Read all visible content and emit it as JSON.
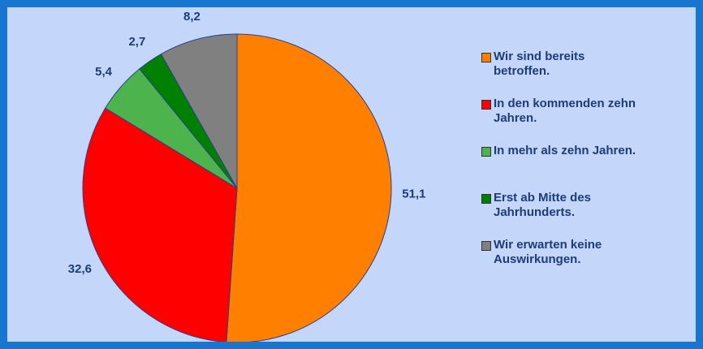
{
  "chart_data": {
    "type": "pie",
    "categories": [
      "Wir sind bereits betroffen.",
      "In den kommenden zehn Jahren.",
      "In mehr als zehn Jahren.",
      "Erst ab Mitte des Jahrhunderts.",
      "Wir erwarten keine Auswirkungen."
    ],
    "values": [
      51.1,
      32.6,
      5.4,
      2.7,
      8.2
    ],
    "value_labels": [
      "51,1",
      "32,6",
      "5,4",
      "2,7",
      "8,2"
    ],
    "colors": [
      "#ff8000",
      "#ff0000",
      "#4db34d",
      "#008000",
      "#808080"
    ],
    "legend": "right"
  }
}
